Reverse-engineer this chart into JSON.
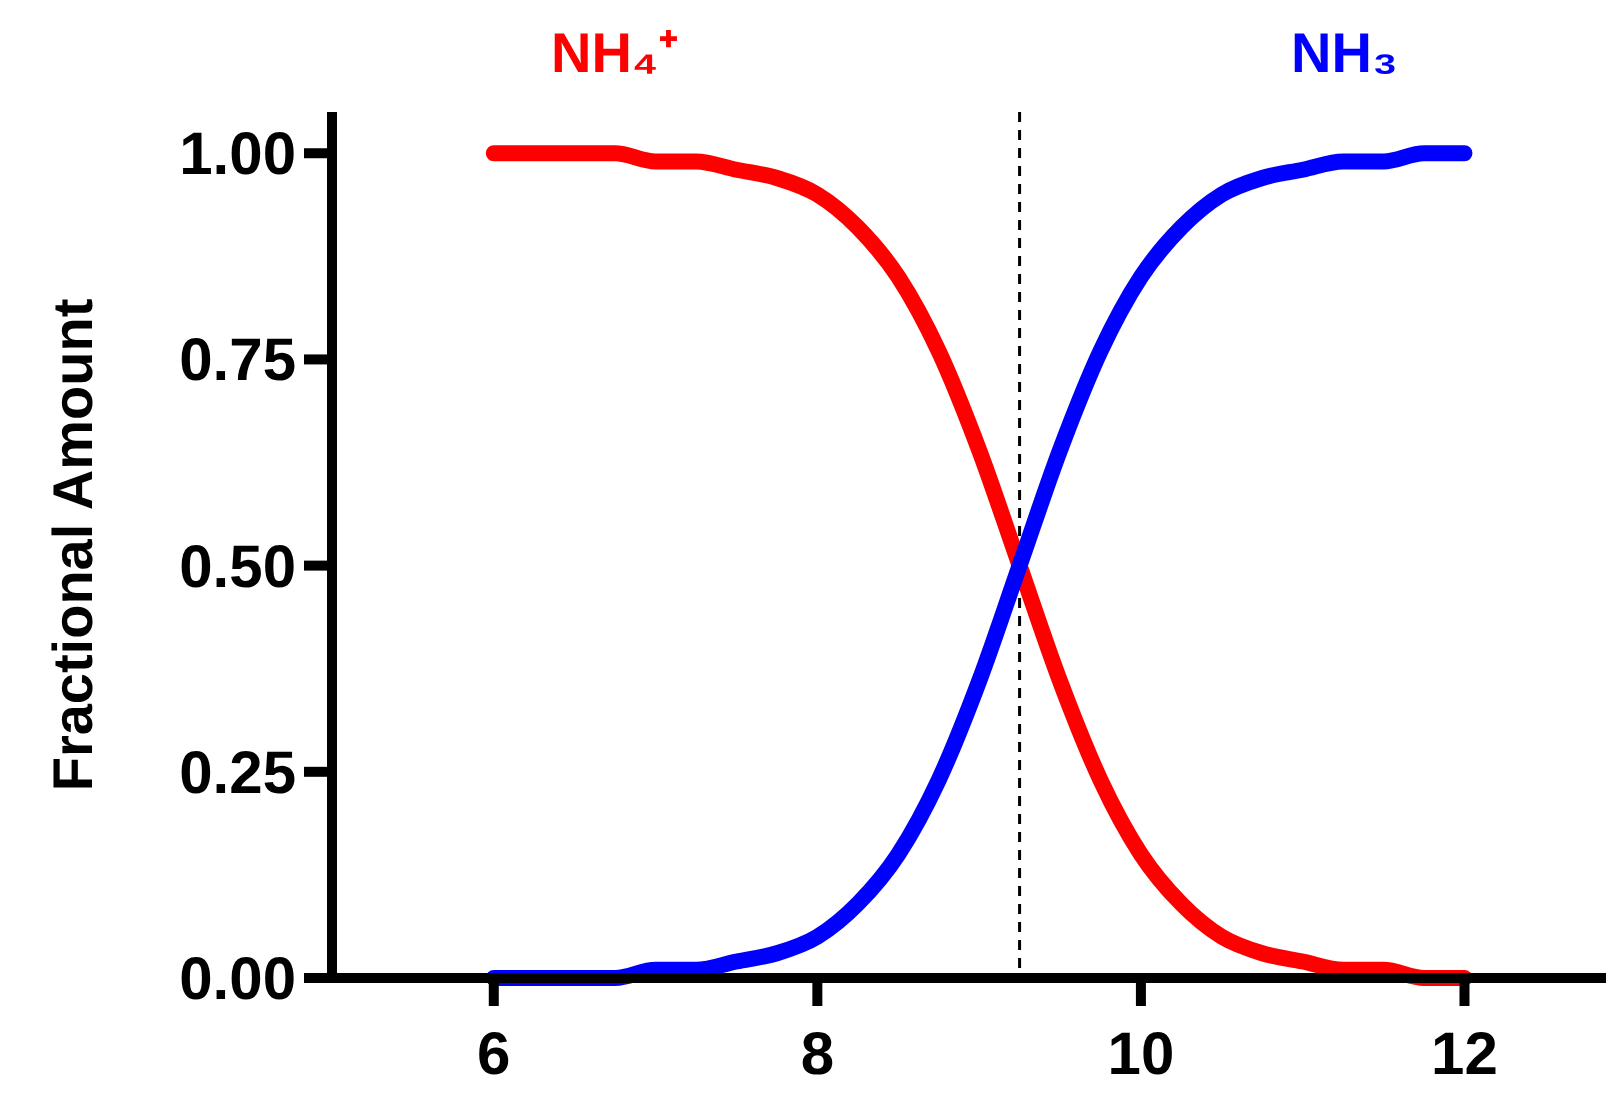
{
  "chart_data": {
    "type": "line",
    "ylabel": "Fractional Amount",
    "x": [
      6,
      6.25,
      6.5,
      6.75,
      7,
      7.25,
      7.5,
      7.75,
      8,
      8.25,
      8.5,
      8.75,
      9,
      9.25,
      9.5,
      9.75,
      10,
      10.25,
      10.5,
      10.75,
      11,
      11.25,
      11.5,
      11.75,
      12
    ],
    "series": [
      {
        "name": "NH₄⁺",
        "color": "#ff0000",
        "values": [
          1.0,
          1.0,
          1.0,
          1.0,
          0.99,
          0.99,
          0.98,
          0.97,
          0.95,
          0.91,
          0.85,
          0.76,
          0.64,
          0.5,
          0.36,
          0.24,
          0.15,
          0.09,
          0.05,
          0.03,
          0.02,
          0.01,
          0.01,
          0.0,
          0.0
        ]
      },
      {
        "name": "NH₃",
        "color": "#0000ff",
        "values": [
          0.0,
          0.0,
          0.0,
          0.0,
          0.01,
          0.01,
          0.02,
          0.03,
          0.05,
          0.09,
          0.15,
          0.24,
          0.36,
          0.5,
          0.64,
          0.76,
          0.85,
          0.91,
          0.95,
          0.97,
          0.98,
          0.99,
          0.99,
          1.0,
          1.0
        ]
      }
    ],
    "xlim": [
      5,
      12.85
    ],
    "ylim": [
      0,
      1.05
    ],
    "xticks": [
      6,
      8,
      10,
      12
    ],
    "yticks": [
      {
        "value": 0,
        "label": "0.00"
      },
      {
        "value": 0.25,
        "label": "0.25"
      },
      {
        "value": 0.5,
        "label": "0.50"
      },
      {
        "value": 0.75,
        "label": "0.75"
      },
      {
        "value": 1,
        "label": "1.00"
      }
    ],
    "ref_lines": [
      {
        "axis": "x",
        "value": 9.25,
        "color": "#000000",
        "line_style": "dashed"
      }
    ],
    "grid": false,
    "legend": false,
    "marker": "none",
    "line_style": "solid"
  }
}
